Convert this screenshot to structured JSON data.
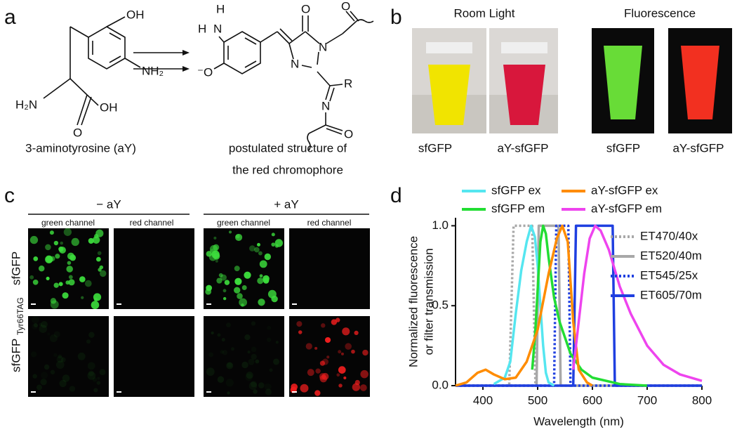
{
  "panel_a": {
    "label": "a",
    "molecule_1": {
      "atoms": [
        "OH",
        "NH₂",
        "H₂N",
        "OH",
        "O"
      ],
      "caption": "3-aminotyrosine (aY)"
    },
    "molecule_2": {
      "atoms": [
        "H",
        "H",
        "N",
        "⁻O",
        "O",
        "N",
        "N",
        "O",
        "R",
        "N",
        "O"
      ],
      "caption": [
        "postulated structure of",
        "the red chromophore"
      ]
    }
  },
  "panel_b": {
    "label": "b",
    "headers": [
      "Room Light",
      "Fluorescence"
    ],
    "samples": [
      "sfGFP",
      "aY-sfGFP",
      "sfGFP",
      "aY-sfGFP"
    ]
  },
  "panel_c": {
    "label": "c",
    "conditions": [
      "− aY",
      "+ aY"
    ],
    "channels": [
      "green channel",
      "red channel",
      "green channel",
      "red channel"
    ],
    "rows": [
      {
        "name": "sfGFP"
      },
      {
        "name": "sfGFP",
        "subscript": "Tyr66TAG"
      }
    ]
  },
  "panel_d_label": "d",
  "chart_data": {
    "type": "line",
    "xlabel": "Wavelength (nm)",
    "ylabel": [
      "Normalized fluorescence",
      "or filter transmission"
    ],
    "xlim": [
      350,
      800
    ],
    "ylim": [
      0,
      1.05
    ],
    "xticks": [
      400,
      500,
      600,
      700,
      800
    ],
    "yticks": [
      {
        "value": 0,
        "label": "0.0"
      },
      0.5,
      {
        "value": 1,
        "label": "1.0"
      }
    ],
    "series": [
      {
        "name": "sfGFP ex",
        "color": "#55e6f0",
        "linestyle": "solid",
        "legend": "top",
        "x": [
          420,
          440,
          450,
          460,
          470,
          480,
          488,
          495,
          500,
          505,
          510,
          515,
          520,
          530
        ],
        "values": [
          0.01,
          0.05,
          0.15,
          0.45,
          0.72,
          0.9,
          1.0,
          0.93,
          0.75,
          0.5,
          0.25,
          0.08,
          0.02,
          0
        ]
      },
      {
        "name": "sfGFP em",
        "color": "#22dd33",
        "linestyle": "solid",
        "legend": "top",
        "x": [
          490,
          495,
          500,
          505,
          510,
          515,
          520,
          530,
          540,
          550,
          560,
          580,
          600,
          650,
          700
        ],
        "values": [
          0.1,
          0.3,
          0.6,
          0.9,
          1.0,
          0.95,
          0.8,
          0.55,
          0.4,
          0.3,
          0.2,
          0.1,
          0.05,
          0.01,
          0
        ]
      },
      {
        "name": "aY-sfGFP ex",
        "color": "#ff8c00",
        "linestyle": "solid",
        "legend": "top",
        "x": [
          350,
          370,
          390,
          405,
          420,
          440,
          460,
          480,
          500,
          520,
          535,
          545,
          555,
          565,
          575,
          590,
          600
        ],
        "values": [
          0,
          0.02,
          0.08,
          0.1,
          0.07,
          0.04,
          0.05,
          0.15,
          0.35,
          0.7,
          0.92,
          1.0,
          0.9,
          0.4,
          0.1,
          0.02,
          0
        ]
      },
      {
        "name": "aY-sfGFP em",
        "color": "#ee44ee",
        "linestyle": "solid",
        "legend": "top",
        "x": [
          565,
          575,
          585,
          595,
          605,
          615,
          630,
          650,
          670,
          700,
          730,
          760,
          800
        ],
        "values": [
          0.1,
          0.4,
          0.7,
          0.92,
          1.0,
          0.97,
          0.85,
          0.62,
          0.45,
          0.25,
          0.13,
          0.07,
          0.03
        ]
      },
      {
        "name": "ET470/40x",
        "color": "#a8a8a8",
        "linestyle": "dotted",
        "legend": "right",
        "x": [
          350,
          448,
          452,
          456,
          490,
          493,
          496,
          800
        ],
        "values": [
          0,
          0,
          0.5,
          1.0,
          1.0,
          0.5,
          0,
          0
        ]
      },
      {
        "name": "ET520/40m",
        "color": "#a8a8a8",
        "linestyle": "solid",
        "legend": "right",
        "x": [
          350,
          498,
          502,
          538,
          542,
          800
        ],
        "values": [
          0,
          0,
          1.0,
          1.0,
          0,
          0
        ]
      },
      {
        "name": "ET545/25x",
        "color": "#1f3fe0",
        "linestyle": "dotted",
        "legend": "right",
        "x": [
          350,
          530,
          534,
          556,
          560,
          800
        ],
        "values": [
          0,
          0,
          1.0,
          1.0,
          0,
          0
        ]
      },
      {
        "name": "ET605/70m",
        "color": "#1f3fe0",
        "linestyle": "solid",
        "legend": "right",
        "x": [
          350,
          565,
          570,
          637,
          641,
          800
        ],
        "values": [
          0,
          0,
          1.0,
          1.0,
          0,
          0
        ]
      }
    ]
  }
}
